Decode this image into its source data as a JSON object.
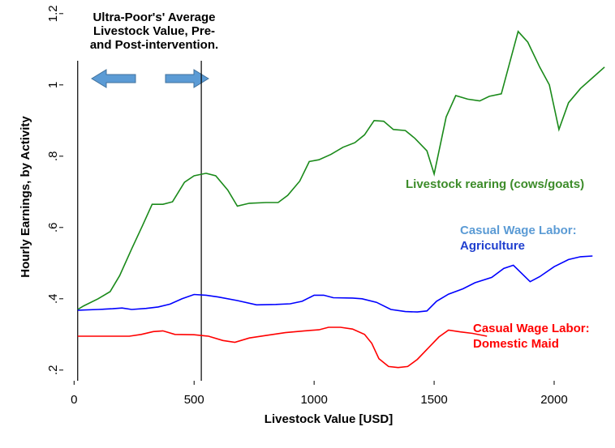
{
  "chart_data": {
    "type": "line",
    "ylabel": "Hourly Earnings, by Activity",
    "xlabel": "Livestock Value [USD]",
    "xlim": [
      -45,
      2240
    ],
    "ylim": [
      0.17,
      1.22
    ],
    "xticks": [
      0,
      500,
      1000,
      1500,
      2000
    ],
    "yticks": [
      {
        "value": 0.2,
        "label": ".2"
      },
      {
        "value": 0.4,
        "label": ".4"
      },
      {
        "value": 0.6,
        "label": ".6"
      },
      {
        "value": 0.8,
        "label": ".8"
      },
      1,
      1.2
    ],
    "annotation": {
      "lines": [
        "Ultra-Poor's' Average",
        "Livestock Value, Pre-",
        "and Post-intervention."
      ],
      "vlines": [
        15,
        530
      ]
    },
    "series": [
      {
        "name": [
          "Livestock rearing (cows/goats)"
        ],
        "label_colors": [
          "#3d8c2a"
        ],
        "color": "#1a8a1a",
        "x": [
          15,
          40,
          100,
          150,
          190,
          240,
          285,
          325,
          370,
          410,
          460,
          500,
          550,
          590,
          640,
          680,
          730,
          800,
          850,
          890,
          940,
          980,
          1020,
          1070,
          1120,
          1170,
          1210,
          1250,
          1290,
          1330,
          1380,
          1420,
          1470,
          1500,
          1550,
          1590,
          1640,
          1690,
          1730,
          1780,
          1850,
          1890,
          1940,
          1980,
          2020,
          2060,
          2110,
          2160,
          2210
        ],
        "values": [
          0.37,
          0.38,
          0.4,
          0.42,
          0.465,
          0.54,
          0.605,
          0.665,
          0.665,
          0.672,
          0.727,
          0.745,
          0.752,
          0.745,
          0.705,
          0.66,
          0.668,
          0.67,
          0.67,
          0.69,
          0.73,
          0.785,
          0.79,
          0.805,
          0.825,
          0.838,
          0.86,
          0.9,
          0.898,
          0.875,
          0.872,
          0.85,
          0.815,
          0.75,
          0.91,
          0.97,
          0.96,
          0.955,
          0.968,
          0.975,
          1.15,
          1.12,
          1.05,
          1.0,
          0.875,
          0.95,
          0.99,
          1.02,
          1.05
        ]
      },
      {
        "name": [
          "Casual Wage Labor:",
          "Agriculture"
        ],
        "label_colors": [
          "#5b9bd5",
          "#1f3fcf"
        ],
        "color": "#0000ff",
        "x": [
          15,
          100,
          160,
          200,
          240,
          300,
          350,
          400,
          450,
          500,
          550,
          600,
          680,
          760,
          840,
          900,
          950,
          1000,
          1040,
          1080,
          1160,
          1200,
          1260,
          1320,
          1380,
          1430,
          1470,
          1510,
          1560,
          1620,
          1670,
          1740,
          1790,
          1830,
          1900,
          1940,
          2000,
          2060,
          2110,
          2160
        ],
        "values": [
          0.368,
          0.37,
          0.372,
          0.374,
          0.37,
          0.373,
          0.377,
          0.385,
          0.4,
          0.412,
          0.41,
          0.405,
          0.395,
          0.383,
          0.384,
          0.386,
          0.393,
          0.41,
          0.41,
          0.403,
          0.402,
          0.4,
          0.39,
          0.37,
          0.364,
          0.363,
          0.366,
          0.393,
          0.413,
          0.428,
          0.445,
          0.46,
          0.485,
          0.494,
          0.448,
          0.462,
          0.49,
          0.51,
          0.518,
          0.52
        ]
      },
      {
        "name": [
          "Casual Wage Labor:",
          "Domestic Maid"
        ],
        "label_colors": [
          "#ff0000",
          "#ff0000"
        ],
        "color": "#ff0000",
        "x": [
          15,
          150,
          230,
          280,
          330,
          370,
          420,
          500,
          560,
          620,
          670,
          730,
          800,
          880,
          960,
          1020,
          1060,
          1110,
          1160,
          1210,
          1240,
          1270,
          1310,
          1350,
          1390,
          1430,
          1480,
          1520,
          1560,
          1610,
          1660,
          1720
        ],
        "values": [
          0.295,
          0.295,
          0.295,
          0.3,
          0.308,
          0.31,
          0.3,
          0.299,
          0.295,
          0.283,
          0.278,
          0.29,
          0.297,
          0.305,
          0.31,
          0.313,
          0.32,
          0.32,
          0.315,
          0.3,
          0.275,
          0.232,
          0.21,
          0.207,
          0.21,
          0.23,
          0.265,
          0.293,
          0.312,
          0.307,
          0.303,
          0.295
        ]
      }
    ]
  }
}
